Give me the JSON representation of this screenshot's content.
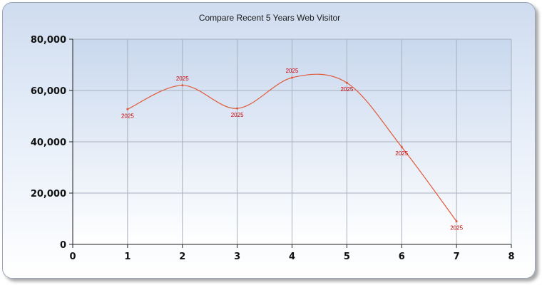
{
  "chart_data": {
    "type": "line",
    "title": "Compare Recent 5 Years Web Visitor",
    "xlabel": "",
    "ylabel": "",
    "xlim": [
      0,
      8
    ],
    "ylim": [
      0,
      80000
    ],
    "x_ticks": [
      0,
      1,
      2,
      3,
      4,
      5,
      6,
      7,
      8
    ],
    "y_ticks": [
      0,
      20000,
      40000,
      60000,
      80000
    ],
    "y_tick_labels": [
      "0",
      "20,000",
      "40,000",
      "60,000",
      "80,000"
    ],
    "grid": true,
    "smooth": true,
    "series": [
      {
        "color": "#e05a3a",
        "x": [
          1,
          2,
          3,
          4,
          5,
          6,
          7
        ],
        "values": [
          52700,
          62000,
          53000,
          65000,
          63000,
          38000,
          9000
        ],
        "point_labels": [
          "2025",
          "2025",
          "2025",
          "2025",
          "2025",
          "2025",
          "2025"
        ],
        "label_color": "#cc0000"
      }
    ]
  }
}
